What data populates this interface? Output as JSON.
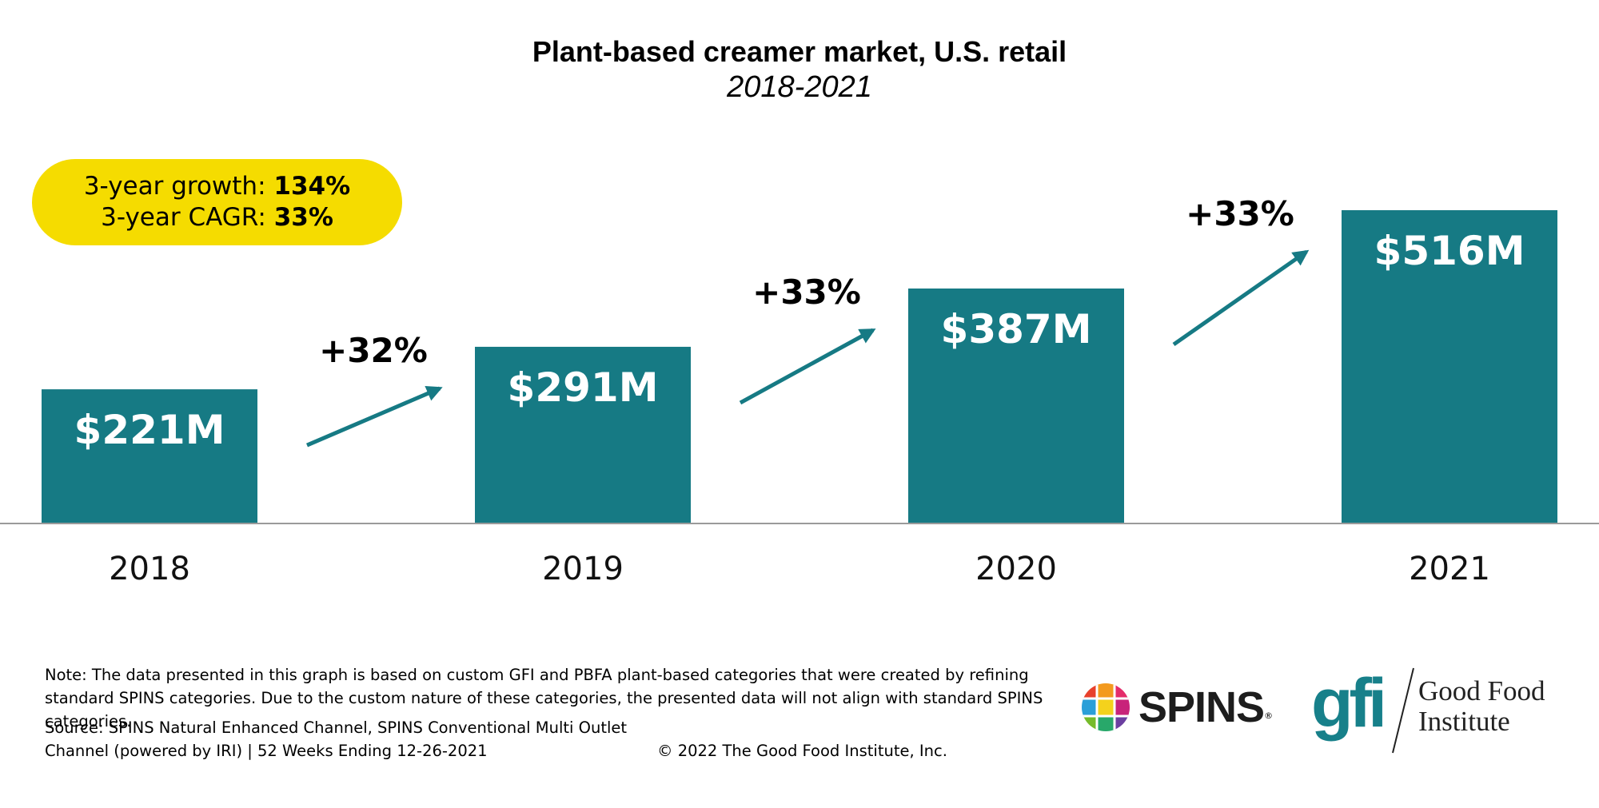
{
  "chart_data": {
    "type": "bar",
    "title": "Plant-based creamer market, U.S. retail",
    "subtitle": "2018-2021",
    "categories": [
      "2018",
      "2019",
      "2020",
      "2021"
    ],
    "values": [
      221,
      291,
      387,
      516
    ],
    "value_labels": [
      "$221M",
      "$291M",
      "$387M",
      "$516M"
    ],
    "unit": "$M",
    "growth_labels": [
      "+32%",
      "+33%",
      "+33%"
    ],
    "bar_color": "#167a84",
    "ylim": [
      0,
      600
    ],
    "grid": false,
    "legend": "none"
  },
  "callout": {
    "growth_label": "3-year growth:",
    "growth_value": "134%",
    "cagr_label": "3-year CAGR:",
    "cagr_value": "33%",
    "color": "#f5dc00"
  },
  "footer": {
    "note": "Note: The data presented in this graph is based on custom GFI and PBFA plant-based categories that were created by refining standard SPINS categories. Due to the custom nature of these categories, the presented data will not align with standard SPINS categories.",
    "source_line1": "Source: SPINS Natural Enhanced Channel, SPINS Conventional Multi Outlet",
    "source_line2": "Channel (powered by IRI) | 52 Weeks Ending 12-26-2021",
    "copyright": "© 2022 The Good Food Institute, Inc."
  },
  "logos": {
    "spins": "SPINS",
    "gfi_mark": "gfi",
    "gfi_name_line1": "Good Food",
    "gfi_name_line2": "Institute"
  }
}
